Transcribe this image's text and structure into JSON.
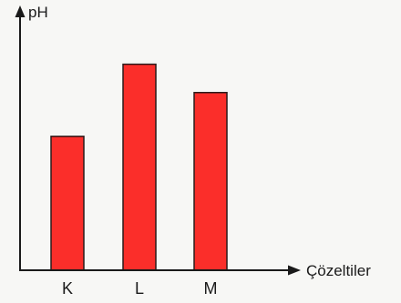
{
  "chart_data": {
    "type": "bar",
    "categories": [
      "K",
      "L",
      "M"
    ],
    "values": [
      5.2,
      8.0,
      6.9
    ],
    "ylabel": "pH",
    "xlabel": "Çözeltiler",
    "ylim": [
      0,
      10
    ],
    "grid": false,
    "colors": {
      "bar_fill": "#fb2e2a",
      "bar_stroke": "#2a1a1a",
      "axis": "#1a1a1a"
    }
  }
}
